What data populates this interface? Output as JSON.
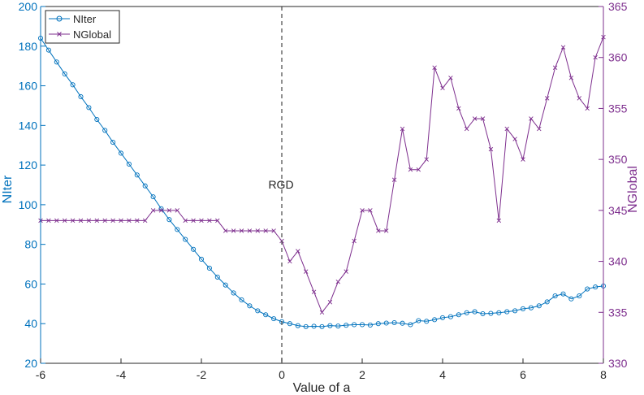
{
  "chart_data": {
    "type": "line",
    "xlabel": "Value of a",
    "xlim": [
      -6,
      8
    ],
    "x_ticks": [
      "-6",
      "-4",
      "-2",
      "0",
      "2",
      "4",
      "6",
      "8"
    ],
    "left_axis": {
      "label": "NIter",
      "lim": [
        20,
        200
      ],
      "ticks": [
        "20",
        "40",
        "60",
        "80",
        "100",
        "120",
        "140",
        "160",
        "180",
        "200"
      ],
      "color": "#0072BD"
    },
    "right_axis": {
      "label": "NGlobal",
      "lim": [
        330,
        365
      ],
      "ticks": [
        "330",
        "335",
        "340",
        "345",
        "350",
        "355",
        "360",
        "365"
      ],
      "color": "#7E2F8E"
    },
    "annotation": {
      "text": "RGD",
      "x": 0
    },
    "legend": {
      "position": "top-left",
      "entries": [
        "NIter",
        "NGlobal"
      ]
    },
    "series": [
      {
        "name": "NIter",
        "axis": "left",
        "marker": "circle",
        "color": "#0072BD",
        "x": [
          -6,
          -5.8,
          -5.6,
          -5.4,
          -5.2,
          -5,
          -4.8,
          -4.6,
          -4.4,
          -4.2,
          -4,
          -3.8,
          -3.6,
          -3.4,
          -3.2,
          -3,
          -2.8,
          -2.6,
          -2.4,
          -2.2,
          -2,
          -1.8,
          -1.6,
          -1.4,
          -1.2,
          -1,
          -0.8,
          -0.6,
          -0.4,
          -0.2,
          0,
          0.2,
          0.4,
          0.6,
          0.8,
          1,
          1.2,
          1.4,
          1.6,
          1.8,
          2,
          2.2,
          2.4,
          2.6,
          2.8,
          3,
          3.2,
          3.4,
          3.6,
          3.8,
          4,
          4.2,
          4.4,
          4.6,
          4.8,
          5,
          5.2,
          5.4,
          5.6,
          5.8,
          6,
          6.2,
          6.4,
          6.6,
          6.8,
          7,
          7.2,
          7.4,
          7.6,
          7.8,
          8
        ],
        "values": [
          184,
          178,
          172,
          166,
          160.5,
          154.5,
          149,
          143,
          137.5,
          131.5,
          126,
          120.5,
          115,
          109.5,
          104,
          98,
          92.5,
          87.5,
          82.5,
          77.5,
          72.5,
          68,
          63.5,
          59.5,
          55.5,
          52,
          49,
          46.5,
          44.5,
          42.5,
          41,
          40,
          39,
          38.5,
          38.7,
          38.5,
          39,
          38.8,
          39.2,
          39.5,
          39.5,
          39.3,
          40,
          40.3,
          40.5,
          40.2,
          39.5,
          41.5,
          41.2,
          42,
          43,
          43.5,
          44.5,
          45.5,
          46,
          45,
          45.2,
          45.5,
          46,
          46.5,
          47.5,
          48,
          49,
          51,
          54,
          55,
          52.5,
          54,
          57.5,
          58.5,
          59
        ]
      },
      {
        "name": "NGlobal",
        "axis": "right",
        "marker": "x",
        "color": "#7E2F8E",
        "x": [
          -6,
          -5.8,
          -5.6,
          -5.4,
          -5.2,
          -5,
          -4.8,
          -4.6,
          -4.4,
          -4.2,
          -4,
          -3.8,
          -3.6,
          -3.4,
          -3.2,
          -3,
          -2.8,
          -2.6,
          -2.4,
          -2.2,
          -2,
          -1.8,
          -1.6,
          -1.4,
          -1.2,
          -1,
          -0.8,
          -0.6,
          -0.4,
          -0.2,
          0,
          0.2,
          0.4,
          0.6,
          0.8,
          1,
          1.2,
          1.4,
          1.6,
          1.8,
          2,
          2.2,
          2.4,
          2.6,
          2.8,
          3,
          3.2,
          3.4,
          3.6,
          3.8,
          4,
          4.2,
          4.4,
          4.6,
          4.8,
          5,
          5.2,
          5.4,
          5.6,
          5.8,
          6,
          6.2,
          6.4,
          6.6,
          6.8,
          7,
          7.2,
          7.4,
          7.6,
          7.8,
          8
        ],
        "values": [
          344,
          344,
          344,
          344,
          344,
          344,
          344,
          344,
          344,
          344,
          344,
          344,
          344,
          344,
          345,
          345,
          345,
          345,
          344,
          344,
          344,
          344,
          344,
          343,
          343,
          343,
          343,
          343,
          343,
          343,
          342,
          340,
          341,
          339,
          337,
          335,
          336,
          338,
          339,
          342,
          345,
          345,
          343,
          343,
          348,
          353,
          349,
          349,
          350,
          359,
          357,
          358,
          355,
          353,
          354,
          354,
          351,
          344,
          353,
          352,
          350,
          354,
          353,
          356,
          359,
          361,
          358,
          356,
          355,
          360,
          362
        ]
      }
    ]
  }
}
